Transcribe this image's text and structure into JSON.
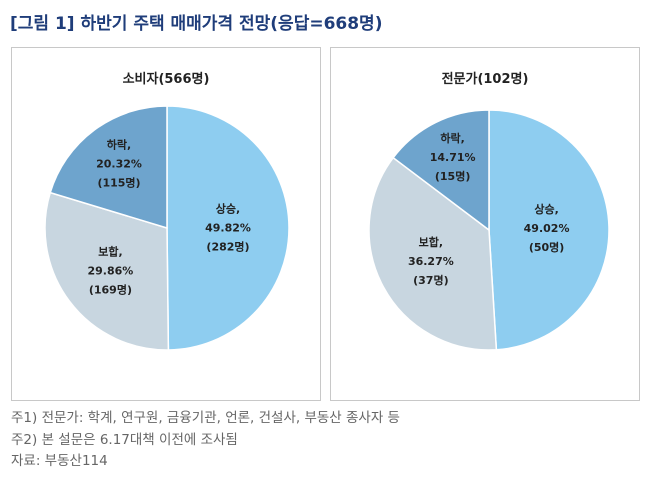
{
  "title": "[그림 1] 하반기 주택 매매가격 전망(응답=668명)",
  "chart_data": [
    {
      "type": "pie",
      "title": "소비자(566명)",
      "slices": [
        {
          "name": "상승",
          "percent": 49.82,
          "count_label": "(282명)",
          "pct_label": "49.82%",
          "color": "#8ecdf0"
        },
        {
          "name": "보합",
          "percent": 29.86,
          "count_label": "(169명)",
          "pct_label": "29.86%",
          "color": "#c8d6e0"
        },
        {
          "name": "하락",
          "percent": 20.32,
          "count_label": "(115명)",
          "pct_label": "20.32%",
          "color": "#6ea4cd"
        }
      ]
    },
    {
      "type": "pie",
      "title": "전문가(102명)",
      "slices": [
        {
          "name": "상승",
          "percent": 49.02,
          "count_label": "(50명)",
          "pct_label": "49.02%",
          "color": "#8ecdf0"
        },
        {
          "name": "보합",
          "percent": 36.27,
          "count_label": "(37명)",
          "pct_label": "36.27%",
          "color": "#c8d6e0"
        },
        {
          "name": "하락",
          "percent": 14.71,
          "count_label": "(15명)",
          "pct_label": "14.71%",
          "color": "#6ea4cd"
        }
      ]
    }
  ],
  "notes": [
    "주1) 전문가: 학계, 연구원, 금융기관, 언론, 건설사, 부동산 종사자 등",
    "주2) 본 설문은 6.17대책 이전에 조사됨",
    "자료: 부동산114"
  ]
}
